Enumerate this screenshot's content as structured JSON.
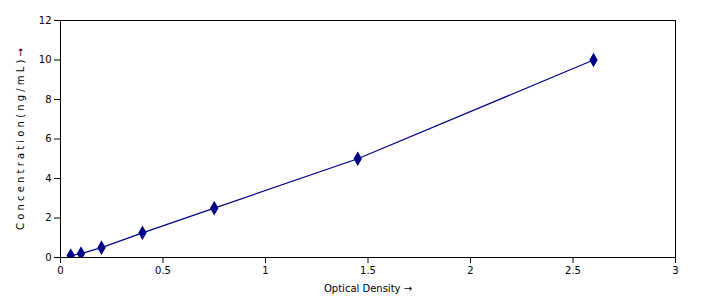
{
  "chart_data": {
    "type": "line",
    "xlabel": "Optical Density",
    "ylabel": "C o n c e n t r a t i o n ( n g / m L )",
    "x": [
      0.05,
      0.1,
      0.2,
      0.4,
      0.75,
      1.45,
      2.6
    ],
    "values": [
      0.1,
      0.2,
      0.5,
      1.25,
      2.5,
      5.0,
      10.0
    ],
    "color": "#00008B",
    "marker": "diamond",
    "line_style": "solid",
    "xlim": [
      0,
      3.0
    ],
    "ylim": [
      0,
      12
    ],
    "xticks": [
      0,
      0.5,
      1,
      1.5,
      2,
      2.5,
      3
    ],
    "yticks": [
      0,
      2,
      4,
      6,
      8,
      10,
      12
    ],
    "grid": false
  }
}
